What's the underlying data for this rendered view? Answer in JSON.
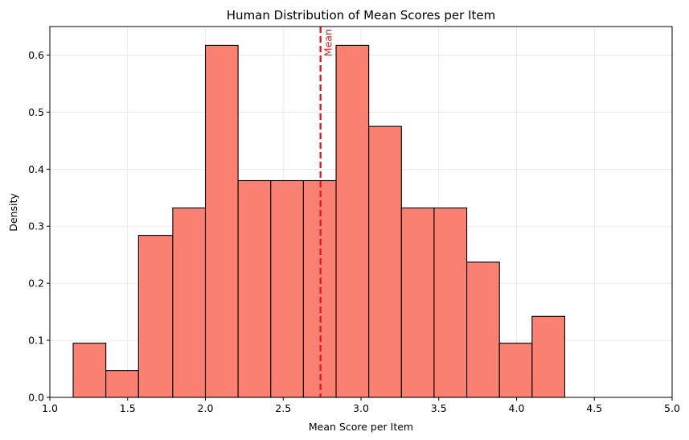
{
  "chart_data": {
    "type": "bar",
    "subtype": "histogram",
    "title": "Human Distribution of Mean Scores per Item",
    "xlabel": "Mean Score per Item",
    "ylabel": "Density",
    "xlim": [
      1.0,
      5.0
    ],
    "ylim": [
      0.0,
      0.65
    ],
    "x_ticks": [
      1.0,
      1.5,
      2.0,
      2.5,
      3.0,
      3.5,
      4.0,
      4.5,
      5.0
    ],
    "x_tick_labels": [
      "1.0",
      "1.5",
      "2.0",
      "2.5",
      "3.0",
      "3.5",
      "4.0",
      "4.5",
      "5.0"
    ],
    "y_ticks": [
      0.0,
      0.1,
      0.2,
      0.3,
      0.4,
      0.5,
      0.6
    ],
    "y_tick_labels": [
      "0.0",
      "0.1",
      "0.2",
      "0.3",
      "0.4",
      "0.5",
      "0.6"
    ],
    "grid": true,
    "bins": [
      {
        "x0": 1.15,
        "x1": 1.36,
        "value": 0.095
      },
      {
        "x0": 1.36,
        "x1": 1.57,
        "value": 0.047
      },
      {
        "x0": 1.57,
        "x1": 1.79,
        "value": 0.284
      },
      {
        "x0": 1.79,
        "x1": 2.0,
        "value": 0.332
      },
      {
        "x0": 2.0,
        "x1": 2.21,
        "value": 0.617
      },
      {
        "x0": 2.21,
        "x1": 2.42,
        "value": 0.38
      },
      {
        "x0": 2.42,
        "x1": 2.63,
        "value": 0.38
      },
      {
        "x0": 2.63,
        "x1": 2.84,
        "value": 0.38
      },
      {
        "x0": 2.84,
        "x1": 3.05,
        "value": 0.617
      },
      {
        "x0": 3.05,
        "x1": 3.26,
        "value": 0.475
      },
      {
        "x0": 3.26,
        "x1": 3.47,
        "value": 0.332
      },
      {
        "x0": 3.47,
        "x1": 3.68,
        "value": 0.332
      },
      {
        "x0": 3.68,
        "x1": 3.89,
        "value": 0.237
      },
      {
        "x0": 3.89,
        "x1": 4.1,
        "value": 0.095
      },
      {
        "x0": 4.1,
        "x1": 4.31,
        "value": 0.142
      }
    ],
    "mean_line": {
      "x": 2.74,
      "label": "Mean"
    },
    "colors": {
      "bar_fill": "#fa8072",
      "bar_edge": "#000000",
      "mean_line": "#e31a1c",
      "grid": "#e6e6e6"
    }
  }
}
